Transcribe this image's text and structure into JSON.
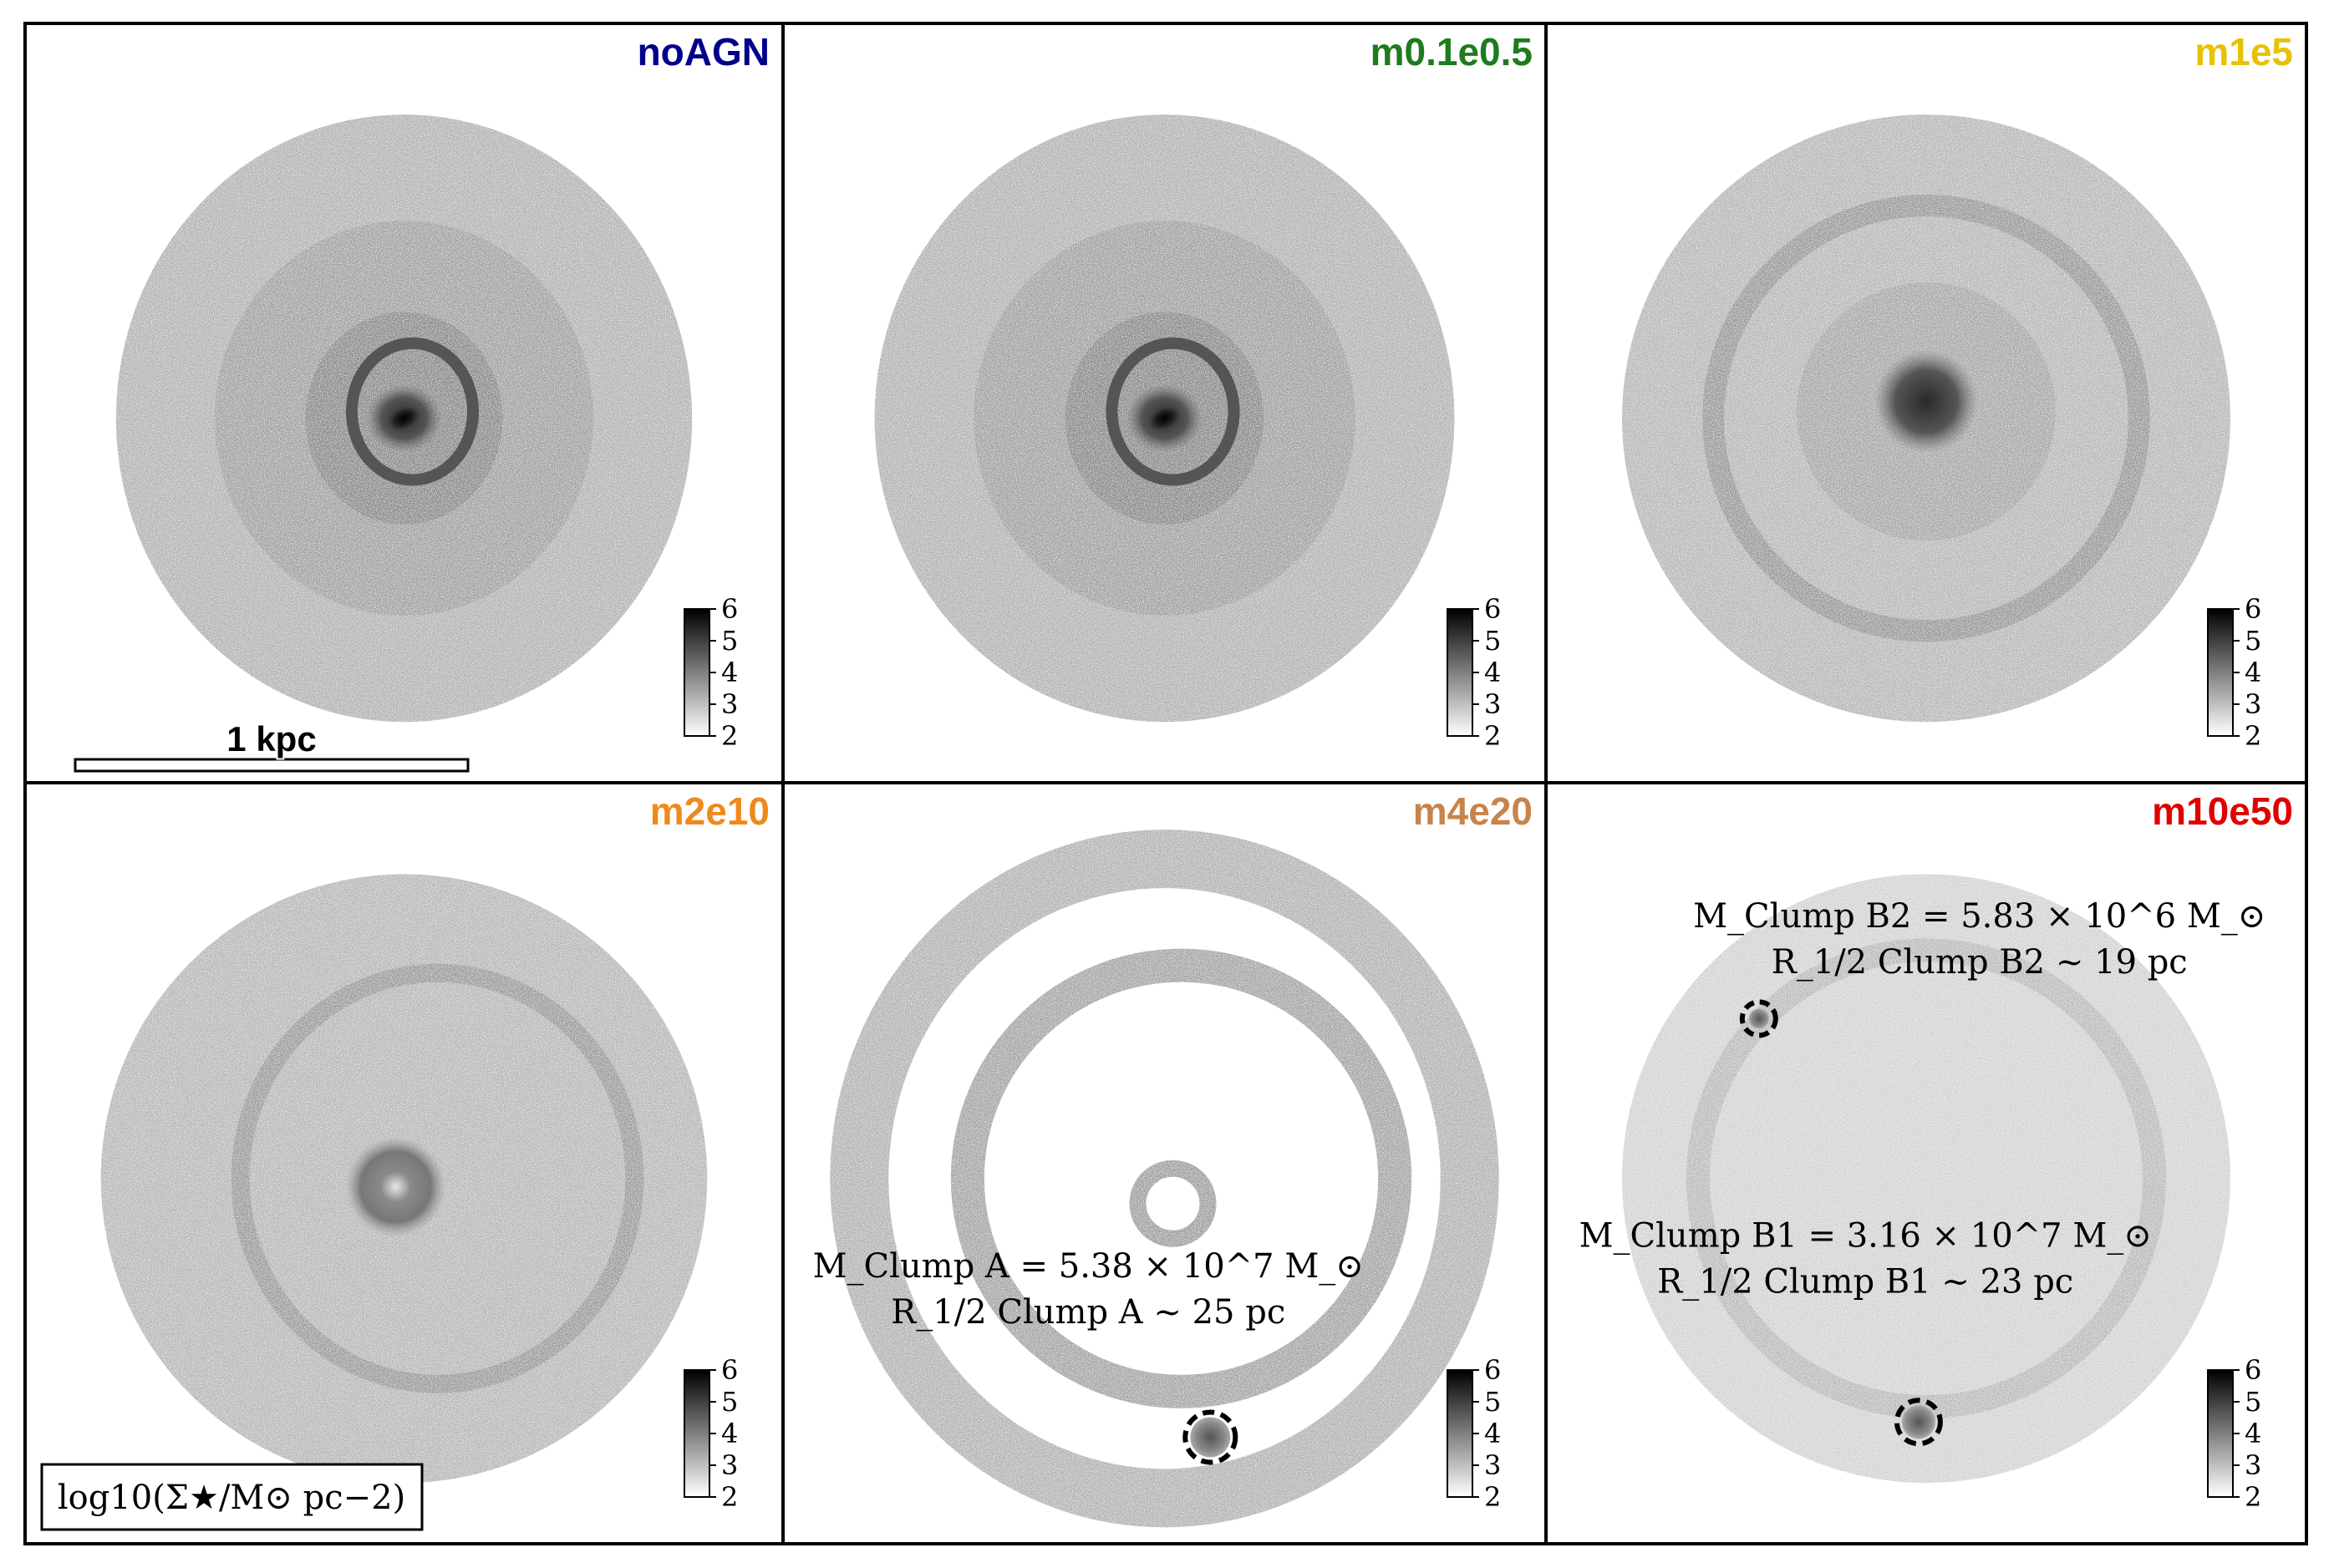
{
  "figure": {
    "panels": [
      {
        "id": "noAGN",
        "label": "noAGN",
        "label_color": "#00008b",
        "scale_bar": "1 kpc",
        "morphology": "bar-spiral"
      },
      {
        "id": "m0.1e0.5",
        "label": "m0.1e0.5",
        "label_color": "#1e7b1e",
        "morphology": "bar-spiral"
      },
      {
        "id": "m1e5",
        "label": "m1e5",
        "label_color": "#e6c200",
        "morphology": "core-rings"
      },
      {
        "id": "m2e10",
        "label": "m2e10",
        "label_color": "#ee8a1c",
        "morphology": "ring-core"
      },
      {
        "id": "m4e20",
        "label": "m4e20",
        "label_color": "#c7844a",
        "morphology": "rings-clump",
        "clump": {
          "mass_line": "M_Clump A = 5.38 × 10^7 M_⊙",
          "radius_line": "R_1/2 Clump A ~ 25 pc"
        }
      },
      {
        "id": "m10e50",
        "label": "m10e50",
        "label_color": "#e00000",
        "morphology": "diffuse-clumps",
        "clump_b2": {
          "mass_line": "M_Clump B2 = 5.83 × 10^6 M_⊙",
          "radius_line": "R_1/2 Clump B2 ~ 19 pc"
        },
        "clump_b1": {
          "mass_line": "M_Clump B1 = 3.16 × 10^7 M_⊙",
          "radius_line": "R_1/2 Clump B1 ~ 23 pc"
        }
      }
    ],
    "colorbar": {
      "ticks": [
        "6",
        "5",
        "4",
        "3",
        "2"
      ],
      "min": 2,
      "max": 6
    },
    "colorbar_label": "log10(Σ★/M⊙ pc−2)",
    "colors": {
      "frame": "#000000",
      "particles": "#9a9a9a",
      "background": "#ffffff"
    }
  }
}
